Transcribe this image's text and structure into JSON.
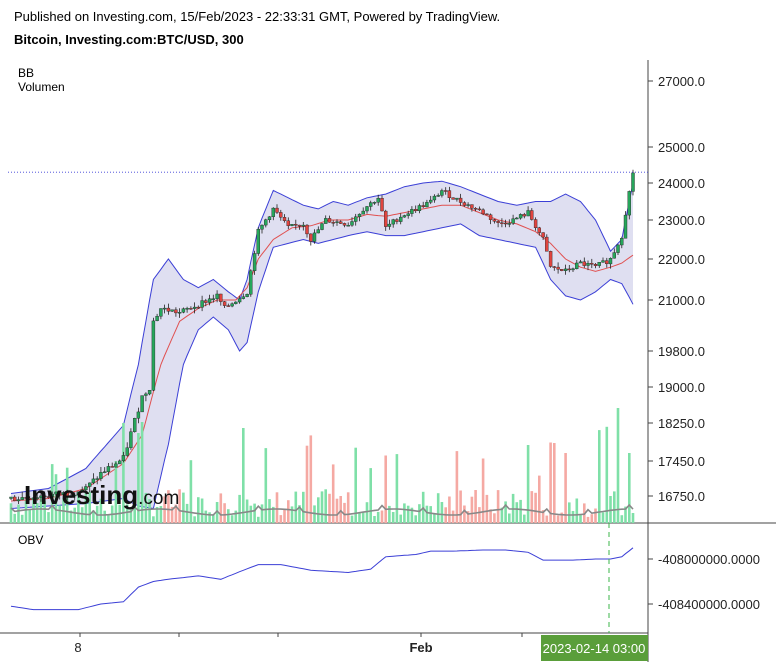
{
  "header": {
    "published": "Published on Investing.com, 15/Feb/2023 - 22:33:31 GMT, Powered by TradingView.",
    "title": "Bitcoin, Investing.com:BTC/USD, 300"
  },
  "indicators": {
    "bb": "BB",
    "volume": "Volumen",
    "obv": "OBV"
  },
  "watermark": "Investing.com",
  "colors": {
    "up": "#26a65b",
    "down": "#e0443f",
    "bb_band": "#3b3fd6",
    "bb_fill": "#d9d9ee",
    "basis": "#e05050",
    "obv_line": "#3b3fd6",
    "vol_up": "#7fe0a8",
    "vol_down": "#f5a9a3",
    "vol_ma": "#888888"
  },
  "chart_data": [
    {
      "type": "line",
      "title": "Bitcoin, Investing.com:BTC/USD, 300",
      "price_ticks": [
        16750.0,
        17450.0,
        18250.0,
        19000.0,
        19800.0,
        21000.0,
        22000.0,
        23000.0,
        24000.0,
        25000.0,
        27000.0
      ],
      "price_tick_labels": [
        "16750.0",
        "17450.0",
        "18250.0",
        "19000.0",
        "19800.0",
        "21000.0",
        "22000.0",
        "23000.0",
        "24000.0",
        "25000.0",
        "27000.0"
      ],
      "x_tick_labels": [
        "8",
        "Feb"
      ],
      "cursor_label": "2023-02-14 03:00",
      "current_price_line": 24300,
      "close_anchors": [
        [
          0,
          16700
        ],
        [
          8,
          16750
        ],
        [
          15,
          16800
        ],
        [
          20,
          16900
        ],
        [
          24,
          17200
        ],
        [
          28,
          17400
        ],
        [
          30,
          17500
        ],
        [
          33,
          18300
        ],
        [
          35,
          18800
        ],
        [
          37,
          19000
        ],
        [
          38,
          20500
        ],
        [
          40,
          20800
        ],
        [
          45,
          20700
        ],
        [
          50,
          20900
        ],
        [
          55,
          21100
        ],
        [
          57,
          20800
        ],
        [
          60,
          21000
        ],
        [
          63,
          21200
        ],
        [
          66,
          22700
        ],
        [
          70,
          23300
        ],
        [
          74,
          22800
        ],
        [
          78,
          22900
        ],
        [
          80,
          22500
        ],
        [
          84,
          23000
        ],
        [
          90,
          22900
        ],
        [
          94,
          23300
        ],
        [
          98,
          23600
        ],
        [
          100,
          22800
        ],
        [
          104,
          23100
        ],
        [
          108,
          23300
        ],
        [
          112,
          23500
        ],
        [
          115,
          23800
        ],
        [
          118,
          23600
        ],
        [
          122,
          23400
        ],
        [
          126,
          23200
        ],
        [
          130,
          22900
        ],
        [
          134,
          23000
        ],
        [
          138,
          23200
        ],
        [
          142,
          22500
        ],
        [
          144,
          21800
        ],
        [
          148,
          21700
        ],
        [
          152,
          21900
        ],
        [
          156,
          21800
        ],
        [
          160,
          22000
        ],
        [
          163,
          22600
        ],
        [
          164,
          23200
        ],
        [
          166,
          24300
        ]
      ],
      "bb_upper_anchors": [
        [
          0,
          16800
        ],
        [
          10,
          16900
        ],
        [
          20,
          17300
        ],
        [
          30,
          18200
        ],
        [
          34,
          19500
        ],
        [
          38,
          21500
        ],
        [
          42,
          22000
        ],
        [
          46,
          21500
        ],
        [
          50,
          21300
        ],
        [
          54,
          21500
        ],
        [
          58,
          21200
        ],
        [
          61,
          21000
        ],
        [
          63,
          21500
        ],
        [
          66,
          22800
        ],
        [
          70,
          23800
        ],
        [
          74,
          23600
        ],
        [
          78,
          23400
        ],
        [
          82,
          23300
        ],
        [
          86,
          23500
        ],
        [
          90,
          23400
        ],
        [
          95,
          23600
        ],
        [
          100,
          23700
        ],
        [
          105,
          23900
        ],
        [
          110,
          24000
        ],
        [
          115,
          24050
        ],
        [
          120,
          23900
        ],
        [
          125,
          23700
        ],
        [
          130,
          23500
        ],
        [
          135,
          23400
        ],
        [
          140,
          23500
        ],
        [
          144,
          23500
        ],
        [
          148,
          23700
        ],
        [
          152,
          23500
        ],
        [
          156,
          23000
        ],
        [
          160,
          22200
        ],
        [
          163,
          22500
        ],
        [
          166,
          24000
        ]
      ],
      "bb_lower_anchors": [
        [
          0,
          16500
        ],
        [
          10,
          16550
        ],
        [
          20,
          16600
        ],
        [
          30,
          16700
        ],
        [
          34,
          16550
        ],
        [
          38,
          16500
        ],
        [
          42,
          17800
        ],
        [
          46,
          19500
        ],
        [
          50,
          20300
        ],
        [
          54,
          20600
        ],
        [
          58,
          20300
        ],
        [
          61,
          19800
        ],
        [
          63,
          20000
        ],
        [
          66,
          21200
        ],
        [
          70,
          22300
        ],
        [
          74,
          22400
        ],
        [
          78,
          22500
        ],
        [
          82,
          22400
        ],
        [
          86,
          22500
        ],
        [
          90,
          22600
        ],
        [
          95,
          22700
        ],
        [
          100,
          22600
        ],
        [
          105,
          22600
        ],
        [
          110,
          22700
        ],
        [
          115,
          22800
        ],
        [
          120,
          22900
        ],
        [
          125,
          22600
        ],
        [
          130,
          22500
        ],
        [
          135,
          22400
        ],
        [
          140,
          22300
        ],
        [
          144,
          21500
        ],
        [
          148,
          21100
        ],
        [
          152,
          21000
        ],
        [
          156,
          21200
        ],
        [
          160,
          21500
        ],
        [
          163,
          21400
        ],
        [
          166,
          20900
        ]
      ],
      "basis_anchors": [
        [
          0,
          16650
        ],
        [
          10,
          16700
        ],
        [
          20,
          16900
        ],
        [
          30,
          17400
        ],
        [
          35,
          18000
        ],
        [
          40,
          19500
        ],
        [
          45,
          20500
        ],
        [
          50,
          20800
        ],
        [
          55,
          21000
        ],
        [
          60,
          21000
        ],
        [
          63,
          21300
        ],
        [
          66,
          22000
        ],
        [
          70,
          22500
        ],
        [
          75,
          22800
        ],
        [
          80,
          22850
        ],
        [
          85,
          23000
        ],
        [
          90,
          23000
        ],
        [
          95,
          23150
        ],
        [
          100,
          23100
        ],
        [
          105,
          23200
        ],
        [
          110,
          23300
        ],
        [
          115,
          23400
        ],
        [
          120,
          23400
        ],
        [
          125,
          23200
        ],
        [
          130,
          23000
        ],
        [
          135,
          22900
        ],
        [
          140,
          22700
        ],
        [
          144,
          22400
        ],
        [
          148,
          22000
        ],
        [
          152,
          21800
        ],
        [
          156,
          21700
        ],
        [
          160,
          21800
        ],
        [
          163,
          21900
        ],
        [
          166,
          22100
        ]
      ],
      "volume_note": "Volumen histogram rendered as bars with moving-average line",
      "obv_ticks": [
        -408000000.0,
        -408400000.0
      ],
      "obv_tick_labels": [
        "-408000000.0000",
        "-408400000.0000"
      ],
      "obv_anchors": [
        [
          0,
          -408420000
        ],
        [
          6,
          -408450000
        ],
        [
          18,
          -408450000
        ],
        [
          24,
          -408400000
        ],
        [
          30,
          -408380000
        ],
        [
          34,
          -408250000
        ],
        [
          38,
          -408200000
        ],
        [
          42,
          -408180000
        ],
        [
          50,
          -408150000
        ],
        [
          56,
          -408180000
        ],
        [
          62,
          -408100000
        ],
        [
          66,
          -408050000
        ],
        [
          72,
          -408050000
        ],
        [
          80,
          -408100000
        ],
        [
          90,
          -408120000
        ],
        [
          96,
          -408090000
        ],
        [
          100,
          -407980000
        ],
        [
          108,
          -407960000
        ],
        [
          112,
          -407930000
        ],
        [
          118,
          -407930000
        ],
        [
          126,
          -407920000
        ],
        [
          132,
          -407920000
        ],
        [
          138,
          -407940000
        ],
        [
          142,
          -408010000
        ],
        [
          150,
          -408010000
        ],
        [
          156,
          -408000000
        ],
        [
          160,
          -408000000
        ],
        [
          163,
          -407980000
        ],
        [
          166,
          -407900000
        ]
      ]
    }
  ]
}
